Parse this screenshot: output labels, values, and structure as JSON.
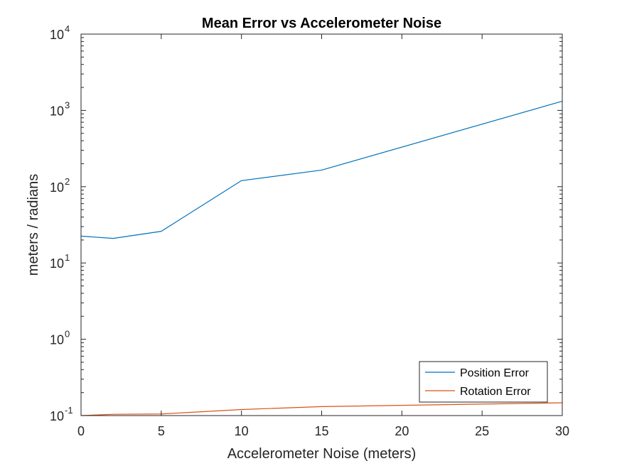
{
  "chart_data": {
    "type": "line",
    "title": "Mean Error vs Accelerometer Noise",
    "xlabel": "Accelerometer Noise (meters)",
    "ylabel": "meters / radians",
    "xlim": [
      0,
      30
    ],
    "ylim": [
      0.1,
      10000
    ],
    "yscale": "log",
    "grid": false,
    "legend_position": "bottom-right",
    "x_ticks": [
      "0",
      "5",
      "10",
      "15",
      "20",
      "25",
      "30"
    ],
    "y_ticks": [
      {
        "base": "10",
        "exp": "-1"
      },
      {
        "base": "10",
        "exp": "0"
      },
      {
        "base": "10",
        "exp": "1"
      },
      {
        "base": "10",
        "exp": "2"
      },
      {
        "base": "10",
        "exp": "3"
      },
      {
        "base": "10",
        "exp": "4"
      }
    ],
    "x": [
      0,
      2,
      5,
      10,
      15,
      30
    ],
    "series": [
      {
        "name": "Position Error",
        "color": "#0072BD",
        "values": [
          22.5,
          21,
          26,
          120,
          165,
          1320
        ]
      },
      {
        "name": "Rotation Error",
        "color": "#D95319",
        "values": [
          0.1,
          0.104,
          0.105,
          0.12,
          0.131,
          0.147
        ]
      }
    ]
  }
}
